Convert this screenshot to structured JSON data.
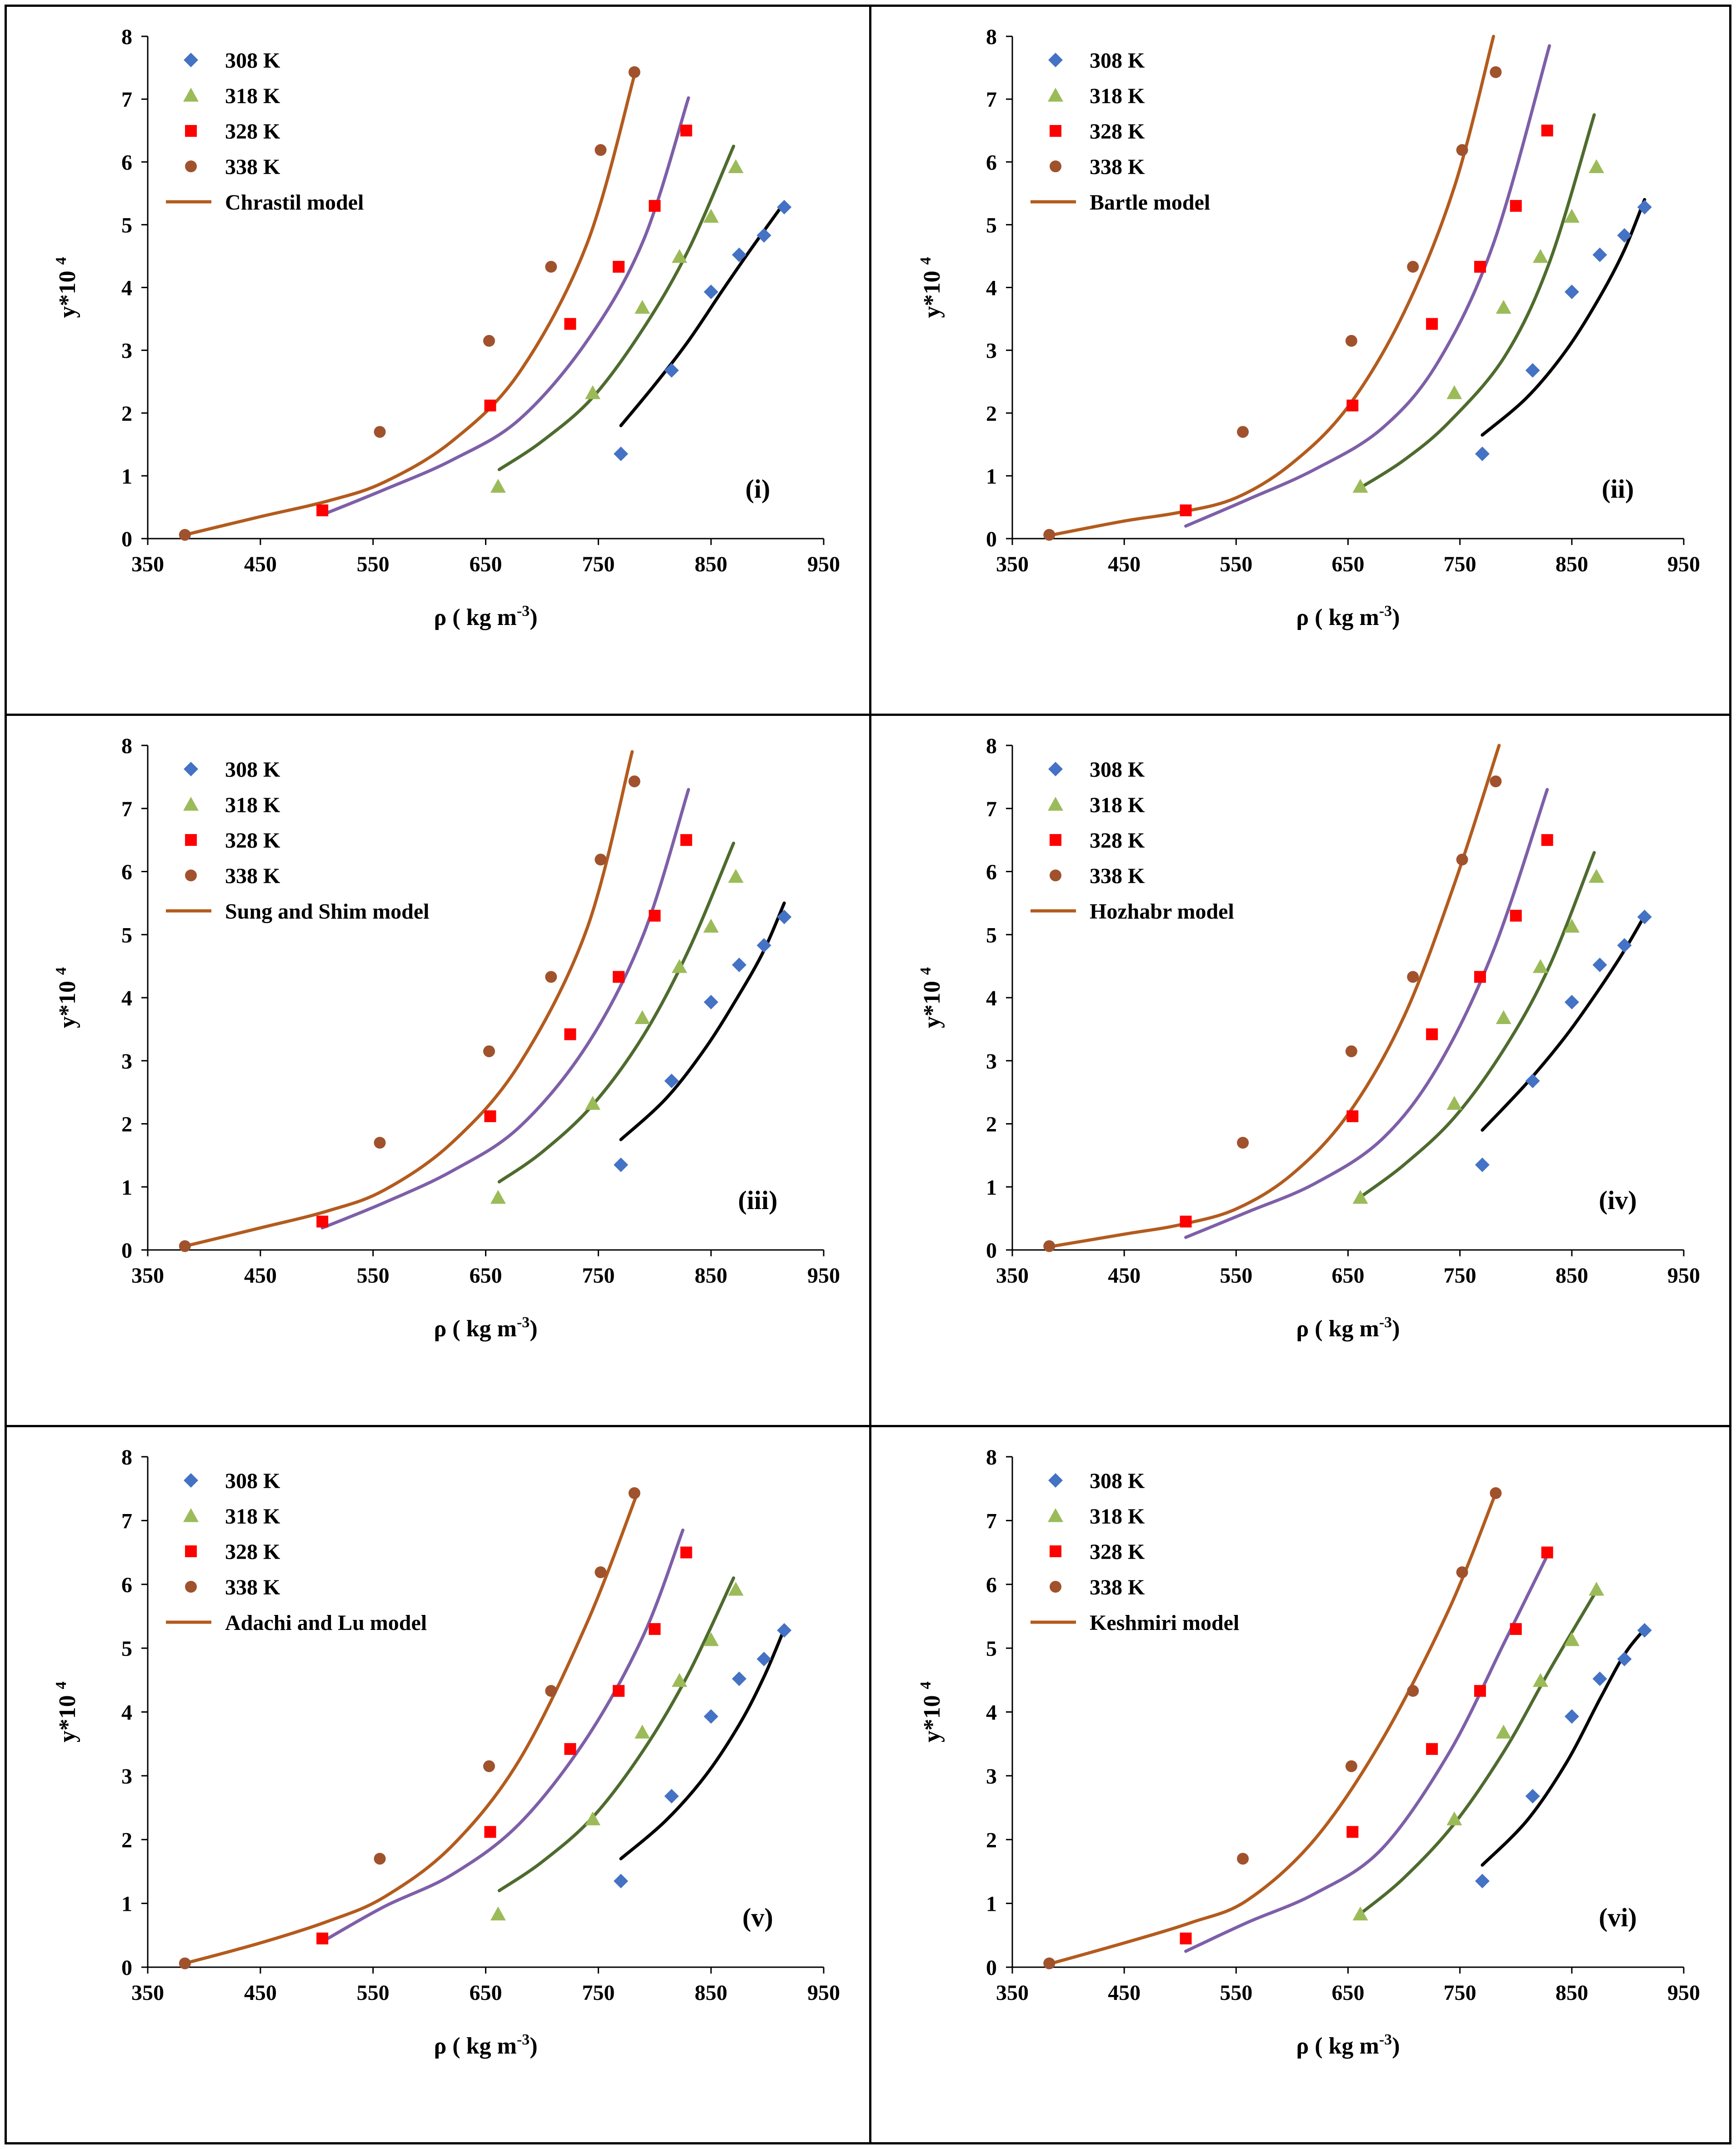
{
  "figure": {
    "border_color": "#000000"
  },
  "colors": {
    "308": "#4472C4",
    "318": "#9BBB59",
    "328": "#FF0000",
    "338": "#A0522D",
    "curve_308": "#000000",
    "curve_318": "#4E6B2E",
    "curve_328": "#7E5FA8",
    "curve_338": "#B35B1E"
  },
  "experimental": {
    "308": {
      "x": [
        770,
        815,
        850,
        875,
        897,
        915
      ],
      "y": [
        1.35,
        2.68,
        3.93,
        4.52,
        4.83,
        5.28
      ]
    },
    "318": {
      "x": [
        661,
        745,
        789,
        822,
        850,
        872
      ],
      "y": [
        0.83,
        2.32,
        3.68,
        4.49,
        5.13,
        5.92
      ]
    },
    "328": {
      "x": [
        505,
        654,
        725,
        768,
        800,
        828
      ],
      "y": [
        0.45,
        2.12,
        3.42,
        4.33,
        5.3,
        6.5
      ]
    },
    "338": {
      "x": [
        383,
        556,
        653,
        708,
        752,
        782
      ],
      "y": [
        0.06,
        1.7,
        3.15,
        4.33,
        6.19,
        7.43
      ]
    }
  },
  "chart_data": [
    {
      "type": "scatter",
      "panel_label": "(i)",
      "title": "",
      "xlabel": "ρ ( kg m",
      "xlabel_sup": "-3",
      "xlabel_end": ")",
      "ylabel": "y*10",
      "ylabel_sup": "4",
      "xlim": [
        350,
        950
      ],
      "ylim": [
        0,
        8
      ],
      "xticks": [
        "350",
        "450",
        "550",
        "650",
        "750",
        "850",
        "950"
      ],
      "yticks": [
        "0",
        "1",
        "2",
        "3",
        "4",
        "5",
        "6",
        "7",
        "8"
      ],
      "legend": [
        "308 K",
        "318 K",
        "328 K",
        "338 K",
        "Chrastil model"
      ],
      "model_series": [
        {
          "name": "308 K model",
          "x": [
            770,
            800,
            830,
            860,
            885,
            915
          ],
          "y": [
            1.8,
            2.45,
            3.15,
            3.95,
            4.6,
            5.35
          ]
        },
        {
          "name": "318 K model",
          "x": [
            662,
            700,
            745,
            790,
            830,
            870
          ],
          "y": [
            1.1,
            1.55,
            2.25,
            3.35,
            4.6,
            6.25
          ]
        },
        {
          "name": "328 K model",
          "x": [
            505,
            560,
            620,
            680,
            740,
            790,
            830
          ],
          "y": [
            0.38,
            0.78,
            1.25,
            1.9,
            3.15,
            4.75,
            7.02
          ]
        },
        {
          "name": "338 K model",
          "x": [
            383,
            450,
            510,
            560,
            620,
            680,
            740,
            783
          ],
          "y": [
            0.06,
            0.35,
            0.6,
            0.9,
            1.55,
            2.65,
            4.7,
            7.45
          ]
        }
      ]
    },
    {
      "type": "scatter",
      "panel_label": "(ii)",
      "title": "",
      "xlabel": "ρ ( kg m",
      "xlabel_sup": "-3",
      "xlabel_end": ")",
      "ylabel": "y*10",
      "ylabel_sup": "4",
      "xlim": [
        350,
        950
      ],
      "ylim": [
        0,
        8
      ],
      "xticks": [
        "350",
        "450",
        "550",
        "650",
        "750",
        "850",
        "950"
      ],
      "yticks": [
        "0",
        "1",
        "2",
        "3",
        "4",
        "5",
        "6",
        "7",
        "8"
      ],
      "legend": [
        "308 K",
        "318 K",
        "328 K",
        "338 K",
        "Bartle model"
      ],
      "model_series": [
        {
          "name": "308 K model",
          "x": [
            770,
            810,
            845,
            875,
            897,
            915
          ],
          "y": [
            1.65,
            2.25,
            3.0,
            3.85,
            4.6,
            5.4
          ]
        },
        {
          "name": "318 K model",
          "x": [
            662,
            700,
            740,
            790,
            830,
            870
          ],
          "y": [
            0.82,
            1.25,
            1.85,
            2.9,
            4.4,
            6.75
          ]
        },
        {
          "name": "328 K model",
          "x": [
            505,
            560,
            620,
            680,
            730,
            780,
            830
          ],
          "y": [
            0.2,
            0.62,
            1.1,
            1.75,
            2.8,
            4.7,
            7.85
          ]
        },
        {
          "name": "338 K model",
          "x": [
            383,
            450,
            500,
            550,
            600,
            650,
            700,
            745,
            780
          ],
          "y": [
            0.05,
            0.28,
            0.42,
            0.65,
            1.2,
            2.1,
            3.6,
            5.6,
            8.0
          ]
        }
      ]
    },
    {
      "type": "scatter",
      "panel_label": "(iii)",
      "title": "",
      "xlabel": "ρ ( kg m",
      "xlabel_sup": "-3",
      "xlabel_end": ")",
      "ylabel": "y*10",
      "ylabel_sup": "4",
      "xlim": [
        350,
        950
      ],
      "ylim": [
        0,
        8
      ],
      "xticks": [
        "350",
        "450",
        "550",
        "650",
        "750",
        "850",
        "950"
      ],
      "yticks": [
        "0",
        "1",
        "2",
        "3",
        "4",
        "5",
        "6",
        "7",
        "8"
      ],
      "legend": [
        "308 K",
        "318 K",
        "328 K",
        "338 K",
        "Sung and Shim model"
      ],
      "model_series": [
        {
          "name": "308 K model",
          "x": [
            770,
            810,
            845,
            875,
            897,
            915
          ],
          "y": [
            1.75,
            2.4,
            3.2,
            4.05,
            4.75,
            5.5
          ]
        },
        {
          "name": "318 K model",
          "x": [
            662,
            700,
            745,
            790,
            830,
            870
          ],
          "y": [
            1.08,
            1.55,
            2.3,
            3.4,
            4.75,
            6.45
          ]
        },
        {
          "name": "328 K model",
          "x": [
            505,
            560,
            620,
            680,
            740,
            790,
            830
          ],
          "y": [
            0.35,
            0.75,
            1.25,
            1.95,
            3.25,
            5.0,
            7.3
          ]
        },
        {
          "name": "338 K model",
          "x": [
            383,
            450,
            510,
            560,
            620,
            680,
            740,
            780
          ],
          "y": [
            0.06,
            0.35,
            0.62,
            0.95,
            1.7,
            2.95,
            5.1,
            7.9
          ]
        }
      ]
    },
    {
      "type": "scatter",
      "panel_label": "(iv)",
      "title": "",
      "xlabel": "ρ ( kg m",
      "xlabel_sup": "-3",
      "xlabel_end": ")",
      "ylabel": "y*10",
      "ylabel_sup": "4",
      "xlim": [
        350,
        950
      ],
      "ylim": [
        0,
        8
      ],
      "xticks": [
        "350",
        "450",
        "550",
        "650",
        "750",
        "850",
        "950"
      ],
      "yticks": [
        "0",
        "1",
        "2",
        "3",
        "4",
        "5",
        "6",
        "7",
        "8"
      ],
      "legend": [
        "308 K",
        "318 K",
        "328 K",
        "338 K",
        "Hozhabr model"
      ],
      "model_series": [
        {
          "name": "308 K model",
          "x": [
            770,
            810,
            845,
            875,
            897,
            915
          ],
          "y": [
            1.9,
            2.65,
            3.4,
            4.15,
            4.75,
            5.3
          ]
        },
        {
          "name": "318 K model",
          "x": [
            662,
            700,
            745,
            790,
            830,
            870
          ],
          "y": [
            0.85,
            1.35,
            2.1,
            3.2,
            4.5,
            6.3
          ]
        },
        {
          "name": "328 K model",
          "x": [
            505,
            560,
            620,
            680,
            730,
            780,
            828
          ],
          "y": [
            0.2,
            0.6,
            1.05,
            1.75,
            2.9,
            4.75,
            7.3
          ]
        },
        {
          "name": "338 K model",
          "x": [
            383,
            450,
            500,
            550,
            600,
            650,
            700,
            745,
            785
          ],
          "y": [
            0.05,
            0.25,
            0.4,
            0.65,
            1.2,
            2.15,
            3.7,
            5.8,
            8.0
          ]
        }
      ]
    },
    {
      "type": "scatter",
      "panel_label": "(v)",
      "title": "",
      "xlabel": "ρ ( kg m",
      "xlabel_sup": "-3",
      "xlabel_end": ")",
      "ylabel": "y*10",
      "ylabel_sup": "4",
      "xlim": [
        350,
        950
      ],
      "ylim": [
        0,
        8
      ],
      "xticks": [
        "350",
        "450",
        "550",
        "650",
        "750",
        "850",
        "950"
      ],
      "yticks": [
        "0",
        "1",
        "2",
        "3",
        "4",
        "5",
        "6",
        "7",
        "8"
      ],
      "legend": [
        "308 K",
        "318 K",
        "328 K",
        "338 K",
        "Adachi and Lu model"
      ],
      "model_series": [
        {
          "name": "308 K model",
          "x": [
            770,
            810,
            845,
            875,
            897,
            915
          ],
          "y": [
            1.7,
            2.3,
            3.0,
            3.8,
            4.55,
            5.3
          ]
        },
        {
          "name": "318 K model",
          "x": [
            662,
            700,
            745,
            790,
            830,
            870
          ],
          "y": [
            1.2,
            1.65,
            2.35,
            3.4,
            4.6,
            6.1
          ]
        },
        {
          "name": "328 K model",
          "x": [
            505,
            560,
            620,
            680,
            740,
            790,
            825
          ],
          "y": [
            0.4,
            0.95,
            1.45,
            2.25,
            3.6,
            5.2,
            6.85
          ]
        },
        {
          "name": "338 K model",
          "x": [
            383,
            450,
            510,
            560,
            620,
            680,
            740,
            785
          ],
          "y": [
            0.06,
            0.38,
            0.72,
            1.1,
            1.9,
            3.25,
            5.4,
            7.45
          ]
        }
      ]
    },
    {
      "type": "scatter",
      "panel_label": "(vi)",
      "title": "",
      "xlabel": "ρ ( kg m",
      "xlabel_sup": "-3",
      "xlabel_end": ")",
      "ylabel": "y*10",
      "ylabel_sup": "4",
      "xlim": [
        350,
        950
      ],
      "ylim": [
        0,
        8
      ],
      "xticks": [
        "350",
        "450",
        "550",
        "650",
        "750",
        "850",
        "950"
      ],
      "yticks": [
        "0",
        "1",
        "2",
        "3",
        "4",
        "5",
        "6",
        "7",
        "8"
      ],
      "legend": [
        "308 K",
        "318 K",
        "328 K",
        "338 K",
        "Keshmiri model"
      ],
      "model_series": [
        {
          "name": "308 K model",
          "x": [
            770,
            810,
            845,
            875,
            897,
            915
          ],
          "y": [
            1.6,
            2.3,
            3.2,
            4.2,
            4.9,
            5.3
          ]
        },
        {
          "name": "318 K model",
          "x": [
            662,
            700,
            745,
            790,
            830,
            872
          ],
          "y": [
            0.85,
            1.4,
            2.25,
            3.4,
            4.65,
            5.9
          ]
        },
        {
          "name": "328 K model",
          "x": [
            505,
            560,
            620,
            680,
            740,
            790,
            828
          ],
          "y": [
            0.25,
            0.7,
            1.15,
            1.85,
            3.35,
            5.1,
            6.45
          ]
        },
        {
          "name": "338 K model",
          "x": [
            383,
            450,
            510,
            560,
            620,
            680,
            740,
            782
          ],
          "y": [
            0.05,
            0.38,
            0.7,
            1.05,
            2.0,
            3.55,
            5.6,
            7.43
          ]
        }
      ]
    }
  ]
}
